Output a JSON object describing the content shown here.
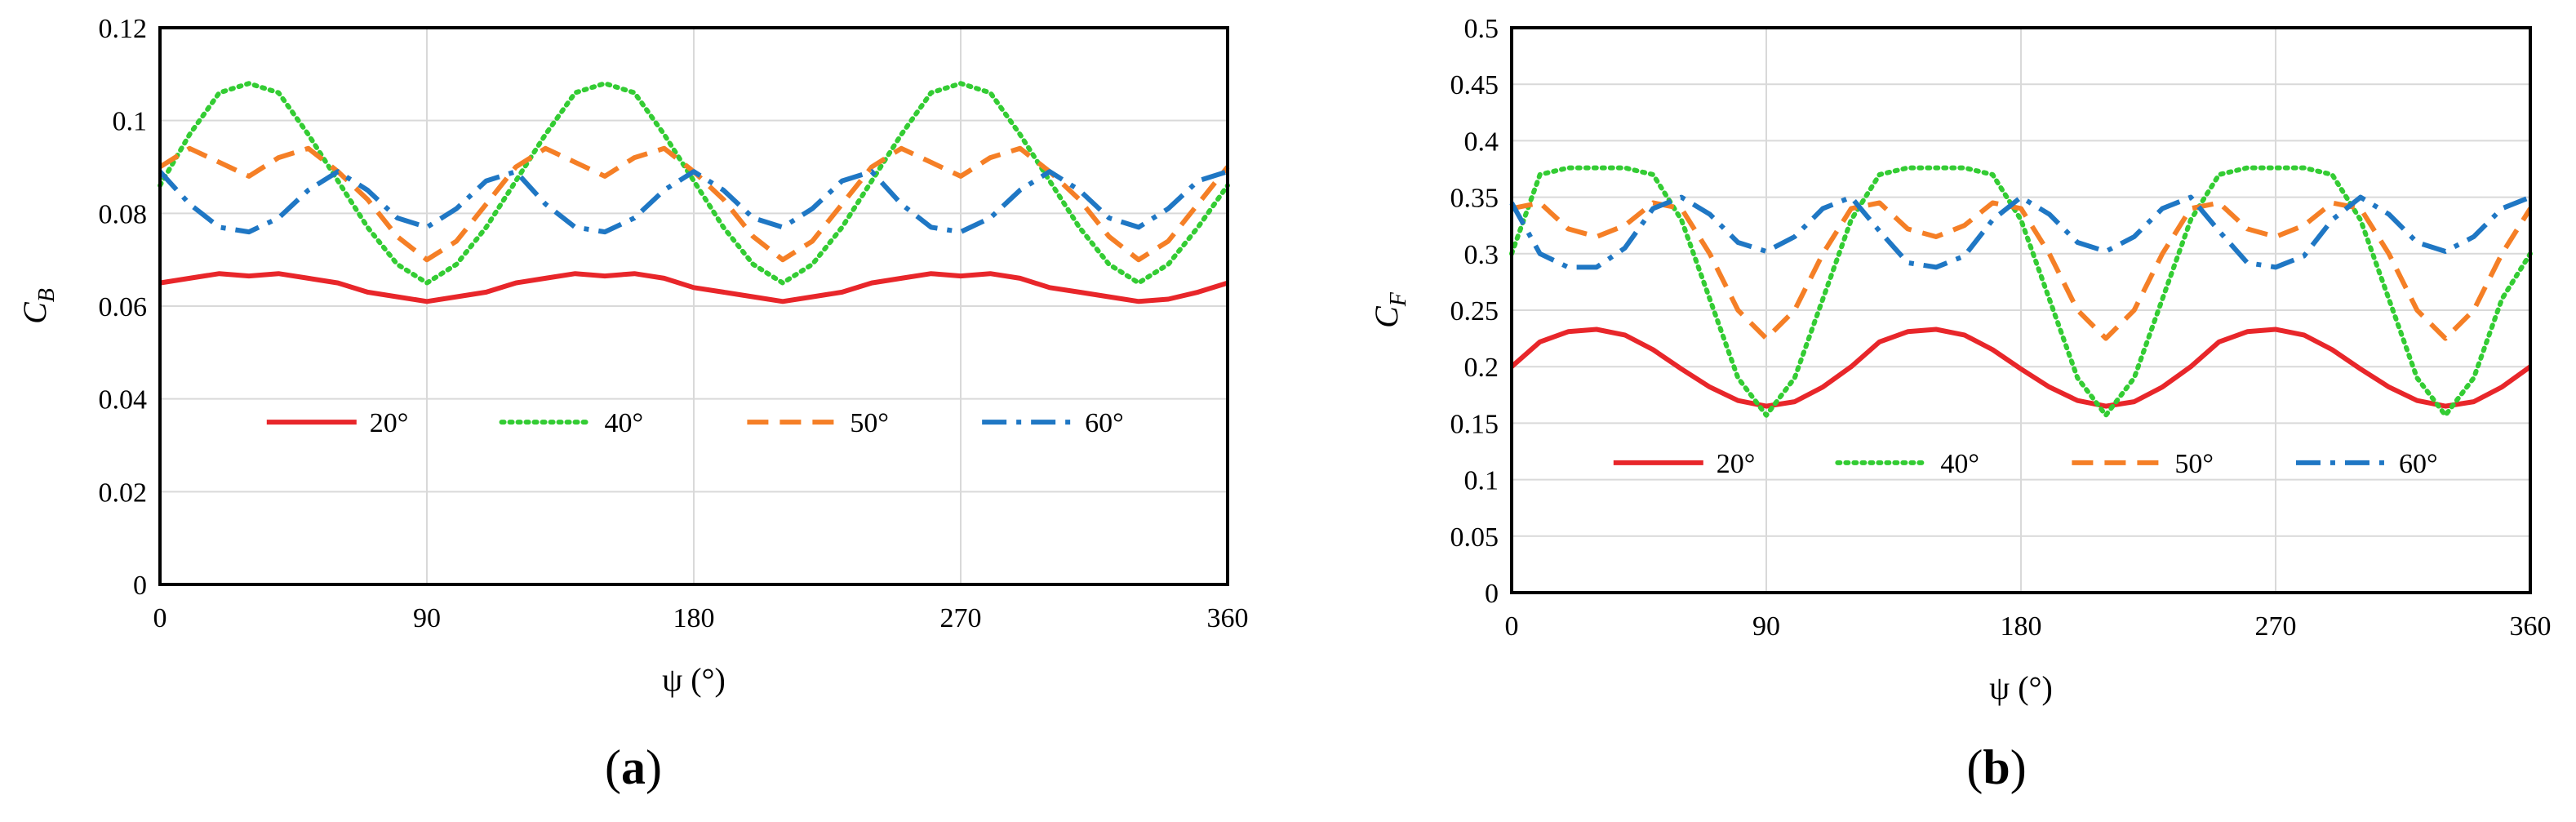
{
  "figure": {
    "panels": [
      "a",
      "b"
    ]
  },
  "chart_data": [
    {
      "type": "line",
      "panel_label": "(a)",
      "panel_letter": "a",
      "title": "",
      "xlabel": "ψ (°)",
      "ylabel": "C_B",
      "ylabel_main": "C",
      "ylabel_sub": "B",
      "xlim": [
        0,
        360
      ],
      "ylim": [
        0,
        0.12
      ],
      "xticks": [
        0,
        90,
        180,
        270,
        360
      ],
      "xtick_labels": [
        "0",
        "90",
        "180",
        "270",
        "360"
      ],
      "yticks": [
        0,
        0.02,
        0.04,
        0.06,
        0.08,
        0.1,
        0.12
      ],
      "ytick_labels": [
        "0",
        "0.02",
        "0.04",
        "0.06",
        "0.08",
        "0.1",
        "0.12"
      ],
      "grid": true,
      "legend_position": "inside-lower-middle",
      "x": [
        0,
        10,
        20,
        30,
        40,
        50,
        60,
        70,
        80,
        90,
        100,
        110,
        120,
        130,
        140,
        150,
        160,
        170,
        180,
        190,
        200,
        210,
        220,
        230,
        240,
        250,
        260,
        270,
        280,
        290,
        300,
        310,
        320,
        330,
        340,
        350,
        360
      ],
      "series": [
        {
          "name": "20°",
          "color": "#e8262a",
          "style": "solid",
          "values": [
            0.065,
            0.066,
            0.067,
            0.0665,
            0.067,
            0.066,
            0.065,
            0.063,
            0.062,
            0.061,
            0.062,
            0.063,
            0.065,
            0.066,
            0.067,
            0.0665,
            0.067,
            0.066,
            0.064,
            0.063,
            0.062,
            0.061,
            0.062,
            0.063,
            0.065,
            0.066,
            0.067,
            0.0665,
            0.067,
            0.066,
            0.064,
            0.063,
            0.062,
            0.061,
            0.0615,
            0.063,
            0.065
          ]
        },
        {
          "name": "40°",
          "color": "#33cc33",
          "style": "dotted",
          "values": [
            0.086,
            0.097,
            0.106,
            0.108,
            0.106,
            0.097,
            0.087,
            0.077,
            0.069,
            0.065,
            0.069,
            0.077,
            0.087,
            0.097,
            0.106,
            0.108,
            0.106,
            0.097,
            0.087,
            0.077,
            0.069,
            0.065,
            0.069,
            0.077,
            0.087,
            0.097,
            0.106,
            0.108,
            0.106,
            0.097,
            0.087,
            0.077,
            0.069,
            0.065,
            0.069,
            0.077,
            0.086
          ]
        },
        {
          "name": "50°",
          "color": "#f57f26",
          "style": "dashed",
          "values": [
            0.09,
            0.094,
            0.091,
            0.088,
            0.092,
            0.094,
            0.089,
            0.083,
            0.075,
            0.07,
            0.074,
            0.082,
            0.09,
            0.094,
            0.091,
            0.088,
            0.092,
            0.094,
            0.089,
            0.083,
            0.075,
            0.07,
            0.074,
            0.082,
            0.09,
            0.094,
            0.091,
            0.088,
            0.092,
            0.094,
            0.089,
            0.083,
            0.075,
            0.07,
            0.074,
            0.082,
            0.09
          ]
        },
        {
          "name": "60°",
          "color": "#1f77c4",
          "style": "dashdot",
          "values": [
            0.089,
            0.082,
            0.077,
            0.076,
            0.079,
            0.085,
            0.089,
            0.085,
            0.079,
            0.077,
            0.081,
            0.087,
            0.089,
            0.082,
            0.077,
            0.076,
            0.079,
            0.085,
            0.089,
            0.085,
            0.079,
            0.077,
            0.081,
            0.087,
            0.089,
            0.082,
            0.077,
            0.076,
            0.079,
            0.085,
            0.089,
            0.085,
            0.079,
            0.077,
            0.081,
            0.087,
            0.089
          ]
        }
      ]
    },
    {
      "type": "line",
      "panel_label": "(b)",
      "panel_letter": "b",
      "title": "",
      "xlabel": "ψ (°)",
      "ylabel": "C_F",
      "ylabel_main": "C",
      "ylabel_sub": "F",
      "xlim": [
        0,
        360
      ],
      "ylim": [
        0,
        0.5
      ],
      "xticks": [
        0,
        90,
        180,
        270,
        360
      ],
      "xtick_labels": [
        "0",
        "90",
        "180",
        "270",
        "360"
      ],
      "yticks": [
        0,
        0.05,
        0.1,
        0.15,
        0.2,
        0.25,
        0.3,
        0.35,
        0.4,
        0.45,
        0.5
      ],
      "ytick_labels": [
        "0",
        "0.05",
        "0.1",
        "0.15",
        "0.2",
        "0.25",
        "0.3",
        "0.35",
        "0.4",
        "0.45",
        "0.5"
      ],
      "grid": true,
      "legend_position": "inside-lower-middle",
      "x": [
        0,
        10,
        20,
        30,
        40,
        50,
        60,
        70,
        80,
        90,
        100,
        110,
        120,
        130,
        140,
        150,
        160,
        170,
        180,
        190,
        200,
        210,
        220,
        230,
        240,
        250,
        260,
        270,
        280,
        290,
        300,
        310,
        320,
        330,
        340,
        350,
        360
      ],
      "series": [
        {
          "name": "20°",
          "color": "#e8262a",
          "style": "solid",
          "values": [
            0.2,
            0.222,
            0.231,
            0.233,
            0.228,
            0.215,
            0.198,
            0.182,
            0.17,
            0.165,
            0.169,
            0.182,
            0.2,
            0.222,
            0.231,
            0.233,
            0.228,
            0.215,
            0.198,
            0.182,
            0.17,
            0.165,
            0.169,
            0.182,
            0.2,
            0.222,
            0.231,
            0.233,
            0.228,
            0.215,
            0.198,
            0.182,
            0.17,
            0.165,
            0.169,
            0.182,
            0.2
          ]
        },
        {
          "name": "40°",
          "color": "#33cc33",
          "style": "dotted",
          "values": [
            0.3,
            0.37,
            0.376,
            0.376,
            0.376,
            0.37,
            0.33,
            0.26,
            0.19,
            0.157,
            0.19,
            0.26,
            0.33,
            0.37,
            0.376,
            0.376,
            0.376,
            0.37,
            0.33,
            0.26,
            0.19,
            0.157,
            0.19,
            0.26,
            0.33,
            0.37,
            0.376,
            0.376,
            0.376,
            0.37,
            0.33,
            0.26,
            0.19,
            0.157,
            0.19,
            0.26,
            0.3
          ]
        },
        {
          "name": "50°",
          "color": "#f57f26",
          "style": "dashed",
          "values": [
            0.34,
            0.345,
            0.322,
            0.315,
            0.325,
            0.345,
            0.34,
            0.3,
            0.25,
            0.225,
            0.25,
            0.3,
            0.34,
            0.345,
            0.322,
            0.315,
            0.325,
            0.345,
            0.34,
            0.3,
            0.25,
            0.225,
            0.25,
            0.3,
            0.34,
            0.345,
            0.322,
            0.315,
            0.325,
            0.345,
            0.34,
            0.3,
            0.25,
            0.225,
            0.25,
            0.3,
            0.34
          ]
        },
        {
          "name": "60°",
          "color": "#1f77c4",
          "style": "dashdot",
          "values": [
            0.345,
            0.3,
            0.288,
            0.288,
            0.305,
            0.34,
            0.35,
            0.335,
            0.31,
            0.302,
            0.315,
            0.34,
            0.35,
            0.32,
            0.292,
            0.288,
            0.298,
            0.33,
            0.35,
            0.335,
            0.31,
            0.302,
            0.315,
            0.34,
            0.35,
            0.32,
            0.292,
            0.288,
            0.298,
            0.33,
            0.35,
            0.335,
            0.31,
            0.302,
            0.315,
            0.34,
            0.35
          ]
        }
      ]
    }
  ]
}
